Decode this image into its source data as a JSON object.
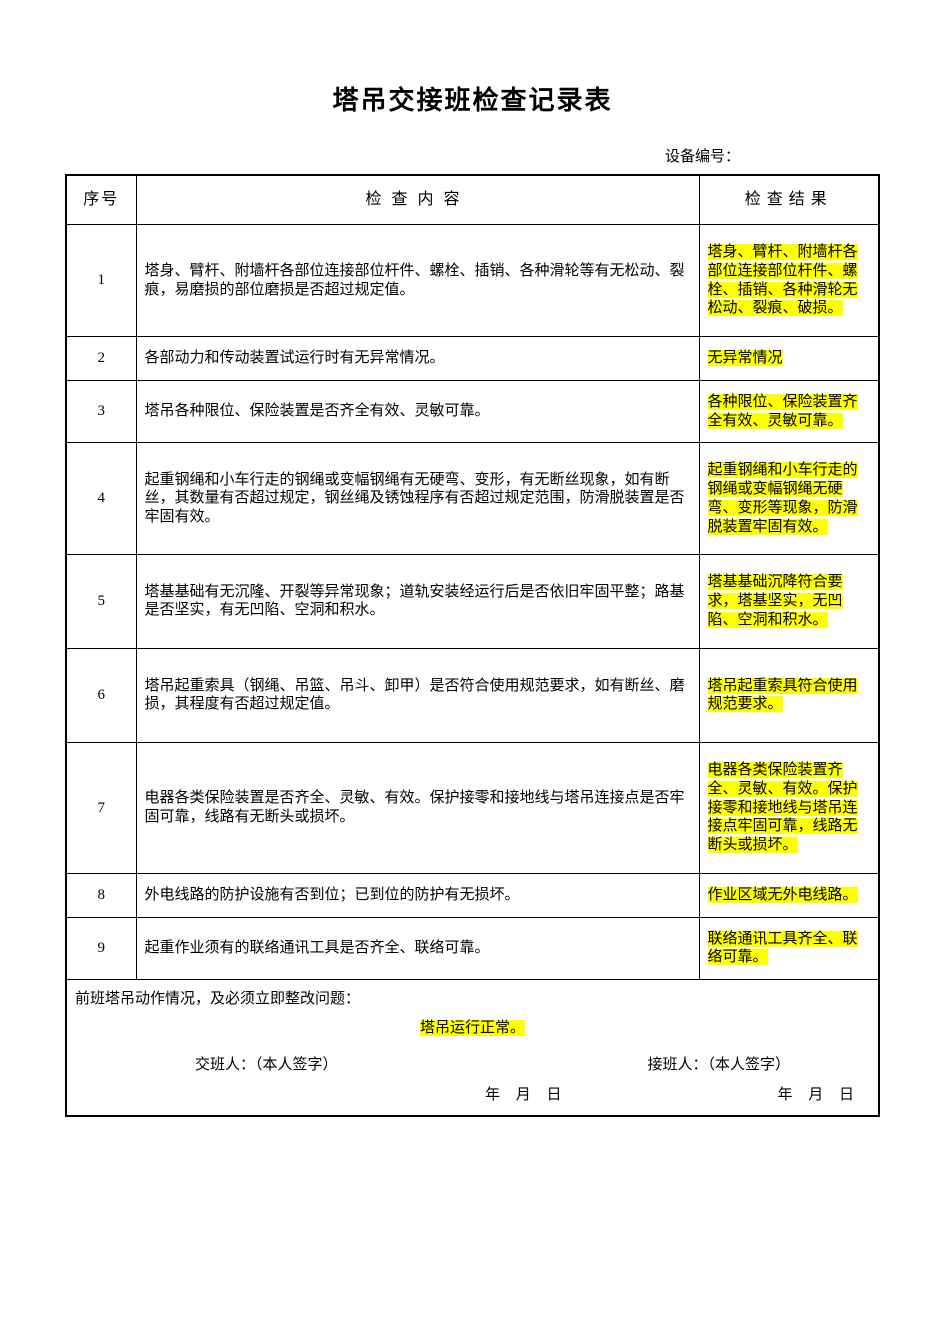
{
  "title": "塔吊交接班检查记录表",
  "equipment_label": "设备编号：",
  "head": {
    "no": "序号",
    "content": "检查内容",
    "result": "检查结果"
  },
  "rows": [
    {
      "no": "1",
      "content": "塔身、臂杆、附墙杆各部位连接部位杆件、螺栓、插销、各种滑轮等有无松动、裂痕，易磨损的部位磨损是否超过规定值。",
      "result": "塔身、臂杆、附墙杆各部位连接部位杆件、螺栓、插销、各种滑轮无松动、裂痕、破损。"
    },
    {
      "no": "2",
      "content": "各部动力和传动装置试运行时有无异常情况。",
      "result": "无异常情况"
    },
    {
      "no": "3",
      "content": "塔吊各种限位、保险装置是否齐全有效、灵敏可靠。",
      "result": "各种限位、保险装置齐全有效、灵敏可靠。"
    },
    {
      "no": "4",
      "content": "起重钢绳和小车行走的钢绳或变幅钢绳有无硬弯、变形，有无断丝现象，如有断丝，其数量有否超过规定，钢丝绳及锈蚀程序有否超过规定范围，防滑脱装置是否牢固有效。",
      "result": "起重钢绳和小车行走的钢绳或变幅钢绳无硬弯、变形等现象，防滑脱装置牢固有效。"
    },
    {
      "no": "5",
      "content": "塔基基础有无沉隆、开裂等异常现象；道轨安装经运行后是否依旧牢固平整；路基是否坚实，有无凹陷、空洞和积水。",
      "result": "塔基基础沉降符合要求，塔基坚实，无凹陷、空洞和积水。"
    },
    {
      "no": "6",
      "content": "塔吊起重索具（钢绳、吊篮、吊斗、卸甲）是否符合使用规范要求，如有断丝、磨损，其程度有否超过规定值。",
      "result": "塔吊起重索具符合使用规范要求。"
    },
    {
      "no": "7",
      "content": "电器各类保险装置是否齐全、灵敏、有效。保护接零和接地线与塔吊连接点是否牢固可靠，线路有无断头或损坏。",
      "result": "电器各类保险装置齐全、灵敏、有效。保护接零和接地线与塔吊连接点牢固可靠，线路无断头或损坏。"
    },
    {
      "no": "8",
      "content": "外电线路的防护设施有否到位；已到位的防护有无损坏。",
      "result": "作业区域无外电线路。"
    },
    {
      "no": "9",
      "content": "起重作业须有的联络通讯工具是否齐全、联络可靠。",
      "result": "联络通讯工具齐全、联络可靠。"
    }
  ],
  "footer": {
    "line1": "前班塔吊动作情况，及必须立即整改问题：",
    "line2": "塔吊运行正常。",
    "handover_label": "交班人：（本人签字）",
    "takeover_label": "接班人：（本人签字）",
    "date_label": "年  月  日"
  },
  "style": {
    "highlight_bg": "#ffff00",
    "border_color": "#000000",
    "page_bg": "#ffffff",
    "text_color": "#000000",
    "title_fontsize": 26,
    "body_fontsize": 15,
    "result_fontsize": 14,
    "col_widths": {
      "no": 70,
      "result": 180
    }
  }
}
